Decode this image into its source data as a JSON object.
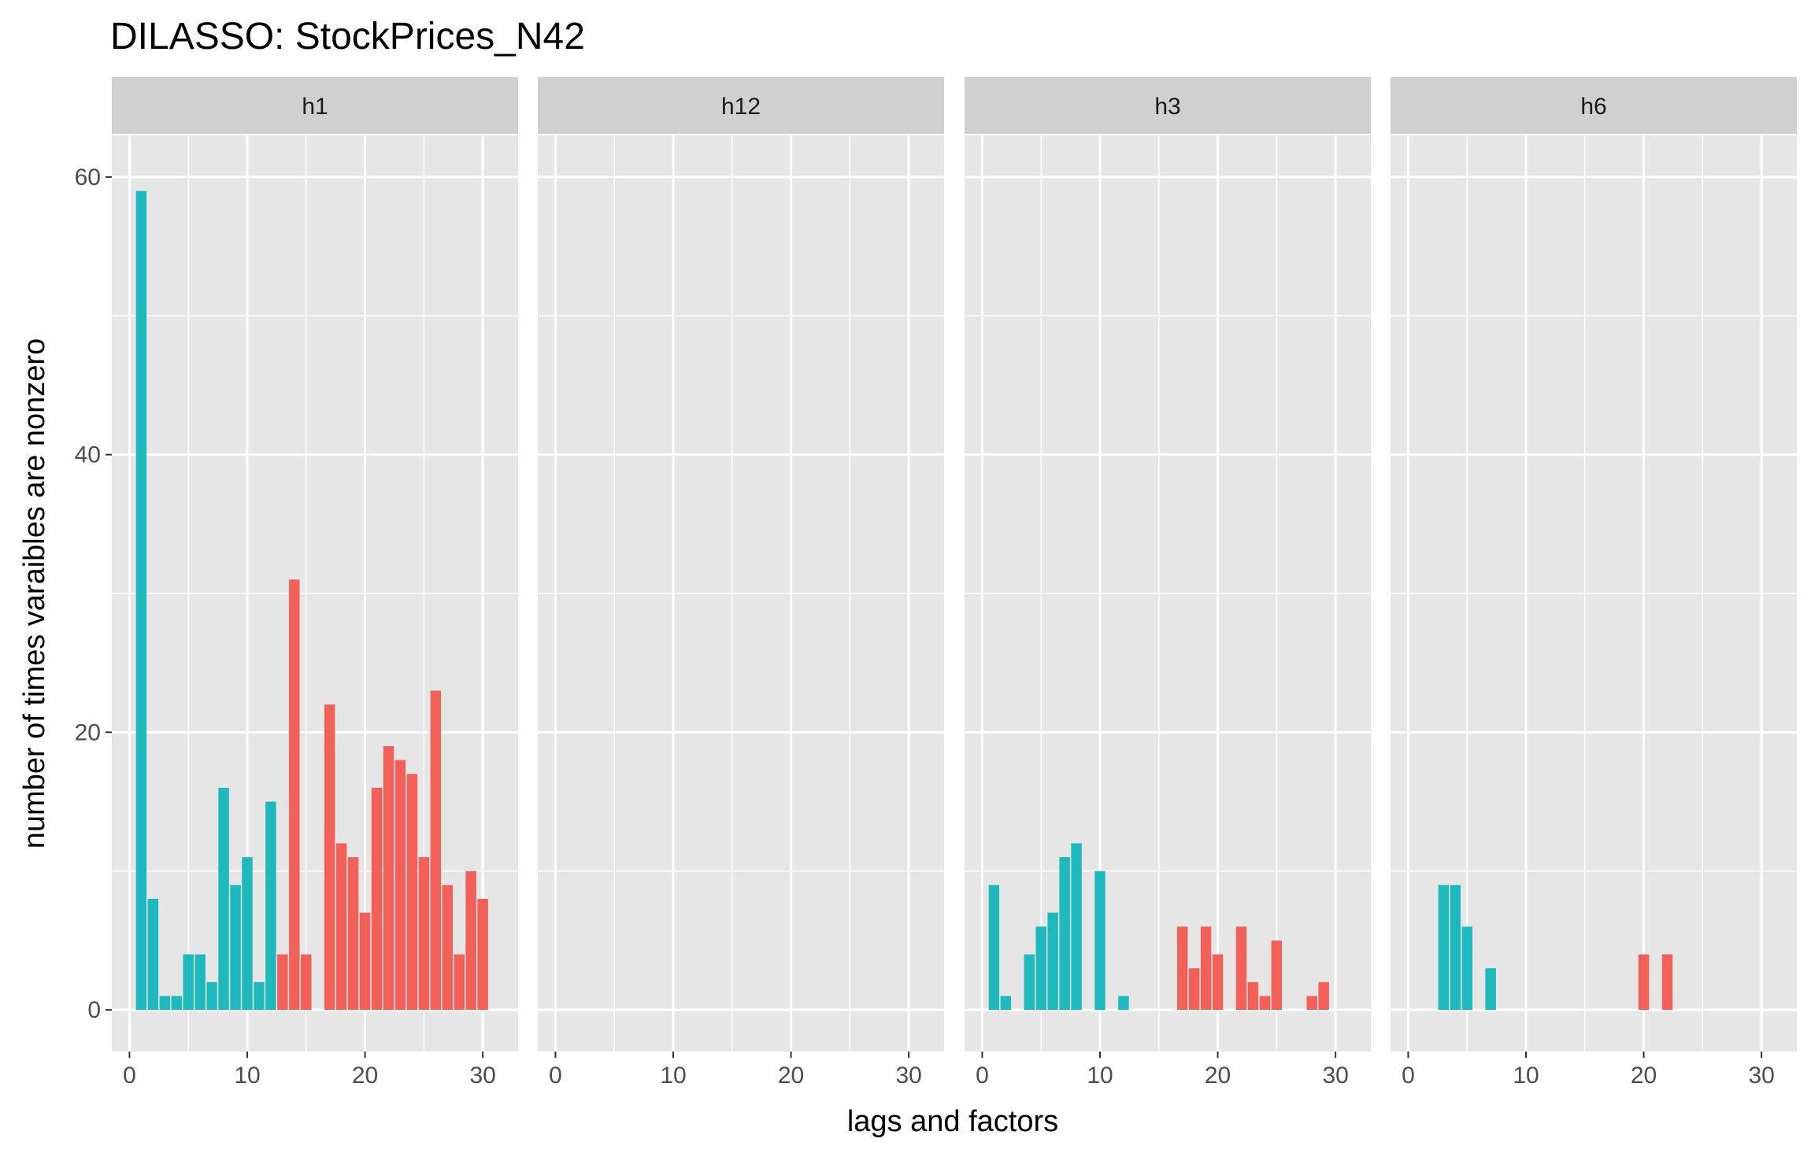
{
  "chart_data": {
    "type": "bar",
    "title": "DILASSO: StockPrices_N42",
    "xlabel": "lags and factors",
    "ylabel": "number of times varaibles are nonzero",
    "xlim": [
      -1.5,
      33
    ],
    "ylim": [
      -3,
      63
    ],
    "x_ticks": [
      "0",
      "10",
      "20",
      "30"
    ],
    "y_ticks": [
      "0",
      "20",
      "40",
      "60"
    ],
    "grid": true,
    "colors": {
      "teal": "#1fb8bd",
      "red": "#f2605a",
      "panel_bg": "#e6e6e6",
      "strip_bg": "#d0d0d0",
      "grid": "#ffffff"
    },
    "facets": [
      {
        "label": "h1",
        "bars": [
          {
            "x": 1,
            "value": 59,
            "color": "teal"
          },
          {
            "x": 2,
            "value": 8,
            "color": "teal"
          },
          {
            "x": 3,
            "value": 1,
            "color": "teal"
          },
          {
            "x": 4,
            "value": 1,
            "color": "teal"
          },
          {
            "x": 5,
            "value": 4,
            "color": "teal"
          },
          {
            "x": 6,
            "value": 4,
            "color": "teal"
          },
          {
            "x": 7,
            "value": 2,
            "color": "teal"
          },
          {
            "x": 8,
            "value": 16,
            "color": "teal"
          },
          {
            "x": 9,
            "value": 9,
            "color": "teal"
          },
          {
            "x": 10,
            "value": 11,
            "color": "teal"
          },
          {
            "x": 11,
            "value": 2,
            "color": "teal"
          },
          {
            "x": 12,
            "value": 15,
            "color": "teal"
          },
          {
            "x": 13,
            "value": 4,
            "color": "red"
          },
          {
            "x": 14,
            "value": 31,
            "color": "red"
          },
          {
            "x": 15,
            "value": 4,
            "color": "red"
          },
          {
            "x": 17,
            "value": 22,
            "color": "red"
          },
          {
            "x": 18,
            "value": 12,
            "color": "red"
          },
          {
            "x": 19,
            "value": 11,
            "color": "red"
          },
          {
            "x": 20,
            "value": 7,
            "color": "red"
          },
          {
            "x": 21,
            "value": 16,
            "color": "red"
          },
          {
            "x": 22,
            "value": 19,
            "color": "red"
          },
          {
            "x": 23,
            "value": 18,
            "color": "red"
          },
          {
            "x": 24,
            "value": 17,
            "color": "red"
          },
          {
            "x": 25,
            "value": 11,
            "color": "red"
          },
          {
            "x": 26,
            "value": 23,
            "color": "red"
          },
          {
            "x": 27,
            "value": 9,
            "color": "red"
          },
          {
            "x": 28,
            "value": 4,
            "color": "red"
          },
          {
            "x": 29,
            "value": 10,
            "color": "red"
          },
          {
            "x": 30,
            "value": 8,
            "color": "red"
          }
        ]
      },
      {
        "label": "h12",
        "bars": []
      },
      {
        "label": "h3",
        "bars": [
          {
            "x": 1,
            "value": 9,
            "color": "teal"
          },
          {
            "x": 2,
            "value": 1,
            "color": "teal"
          },
          {
            "x": 4,
            "value": 4,
            "color": "teal"
          },
          {
            "x": 5,
            "value": 6,
            "color": "teal"
          },
          {
            "x": 6,
            "value": 7,
            "color": "teal"
          },
          {
            "x": 7,
            "value": 11,
            "color": "teal"
          },
          {
            "x": 8,
            "value": 12,
            "color": "teal"
          },
          {
            "x": 10,
            "value": 10,
            "color": "teal"
          },
          {
            "x": 12,
            "value": 1,
            "color": "teal"
          },
          {
            "x": 17,
            "value": 6,
            "color": "red"
          },
          {
            "x": 18,
            "value": 3,
            "color": "red"
          },
          {
            "x": 19,
            "value": 6,
            "color": "red"
          },
          {
            "x": 20,
            "value": 4,
            "color": "red"
          },
          {
            "x": 22,
            "value": 6,
            "color": "red"
          },
          {
            "x": 23,
            "value": 2,
            "color": "red"
          },
          {
            "x": 24,
            "value": 1,
            "color": "red"
          },
          {
            "x": 25,
            "value": 5,
            "color": "red"
          },
          {
            "x": 28,
            "value": 1,
            "color": "red"
          },
          {
            "x": 29,
            "value": 2,
            "color": "red"
          }
        ]
      },
      {
        "label": "h6",
        "bars": [
          {
            "x": 3,
            "value": 9,
            "color": "teal"
          },
          {
            "x": 4,
            "value": 9,
            "color": "teal"
          },
          {
            "x": 5,
            "value": 6,
            "color": "teal"
          },
          {
            "x": 7,
            "value": 3,
            "color": "teal"
          },
          {
            "x": 20,
            "value": 4,
            "color": "red"
          },
          {
            "x": 22,
            "value": 4,
            "color": "red"
          }
        ]
      }
    ]
  }
}
